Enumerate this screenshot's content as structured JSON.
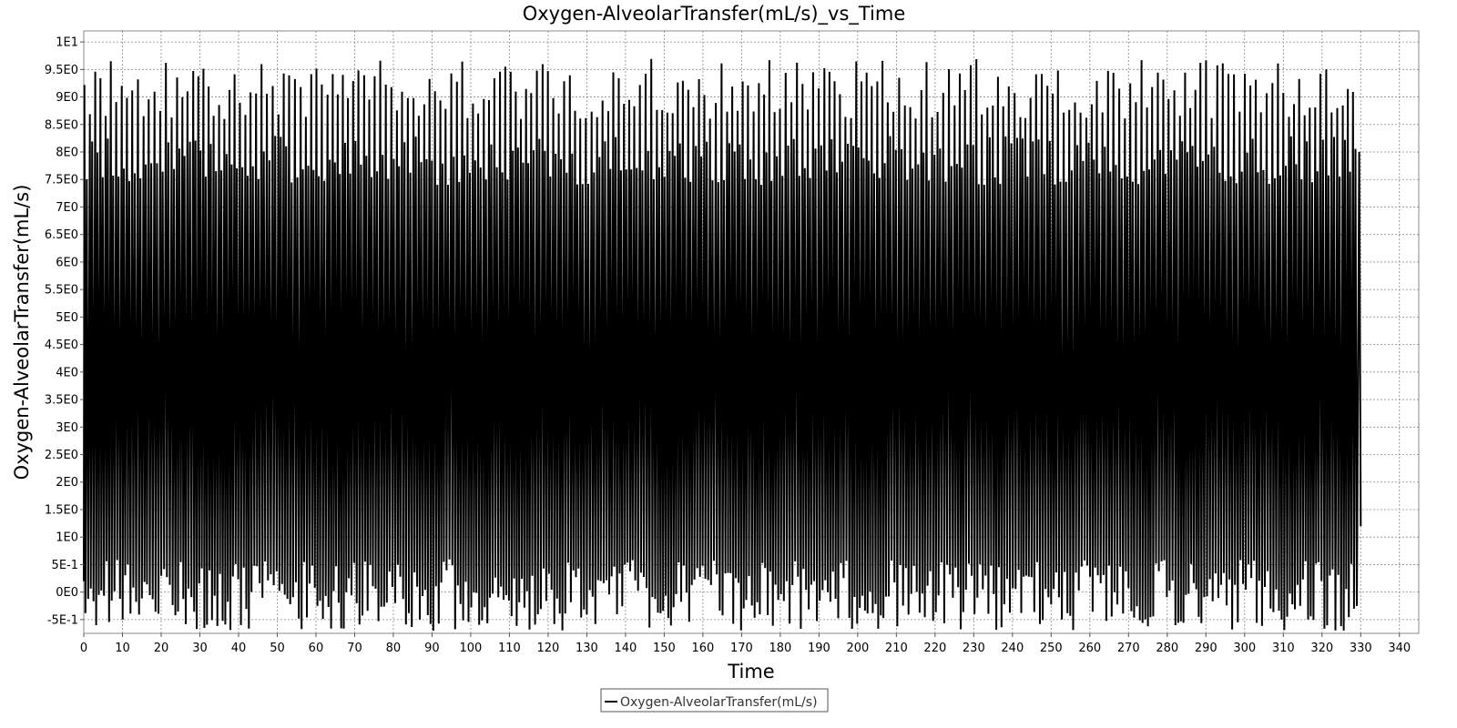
{
  "chart_data": {
    "type": "line",
    "title": "Oxygen-AlveolarTransfer(mL/s)_vs_Time",
    "xlabel": "Time",
    "ylabel": "Oxygen-AlveolarTransfer(mL/s)",
    "xlim": [
      0,
      345
    ],
    "ylim": [
      -0.75,
      10.2
    ],
    "x_ticks": [
      0,
      10,
      20,
      30,
      40,
      50,
      60,
      70,
      80,
      90,
      100,
      110,
      120,
      130,
      140,
      150,
      160,
      170,
      180,
      190,
      200,
      210,
      220,
      230,
      240,
      250,
      260,
      270,
      280,
      290,
      300,
      310,
      320,
      330,
      340
    ],
    "y_ticks": [
      {
        "value": -0.5,
        "label": "-5E-1"
      },
      {
        "value": 0,
        "label": "0E0"
      },
      {
        "value": 0.5,
        "label": "5E-1"
      },
      {
        "value": 1,
        "label": "1E0"
      },
      {
        "value": 1.5,
        "label": "1.5E0"
      },
      {
        "value": 2,
        "label": "2E0"
      },
      {
        "value": 2.5,
        "label": "2.5E0"
      },
      {
        "value": 3,
        "label": "3E0"
      },
      {
        "value": 3.5,
        "label": "3.5E0"
      },
      {
        "value": 4,
        "label": "4E0"
      },
      {
        "value": 4.5,
        "label": "4.5E0"
      },
      {
        "value": 5,
        "label": "5E0"
      },
      {
        "value": 5.5,
        "label": "5.5E0"
      },
      {
        "value": 6,
        "label": "6E0"
      },
      {
        "value": 6.5,
        "label": "6.5E0"
      },
      {
        "value": 7,
        "label": "7E0"
      },
      {
        "value": 7.5,
        "label": "7.5E0"
      },
      {
        "value": 8,
        "label": "8E0"
      },
      {
        "value": 8.5,
        "label": "8.5E0"
      },
      {
        "value": 9,
        "label": "9E0"
      },
      {
        "value": 9.5,
        "label": "9.5E0"
      },
      {
        "value": 10,
        "label": "1E1"
      }
    ],
    "grid": true,
    "legend_position": "bottom-center",
    "series": [
      {
        "name": "Oxygen-AlveolarTransfer(mL/s)",
        "color": "#000000",
        "x_range": [
          0,
          330
        ],
        "oscillation": {
          "peak_period": 1.4,
          "peak_min": 8.6,
          "peak_max": 9.7,
          "secondary_peak_min": 7.4,
          "secondary_peak_max": 8.3,
          "trough_min": -0.7,
          "trough_max": 0.6,
          "end_value": 1.2
        }
      }
    ]
  }
}
